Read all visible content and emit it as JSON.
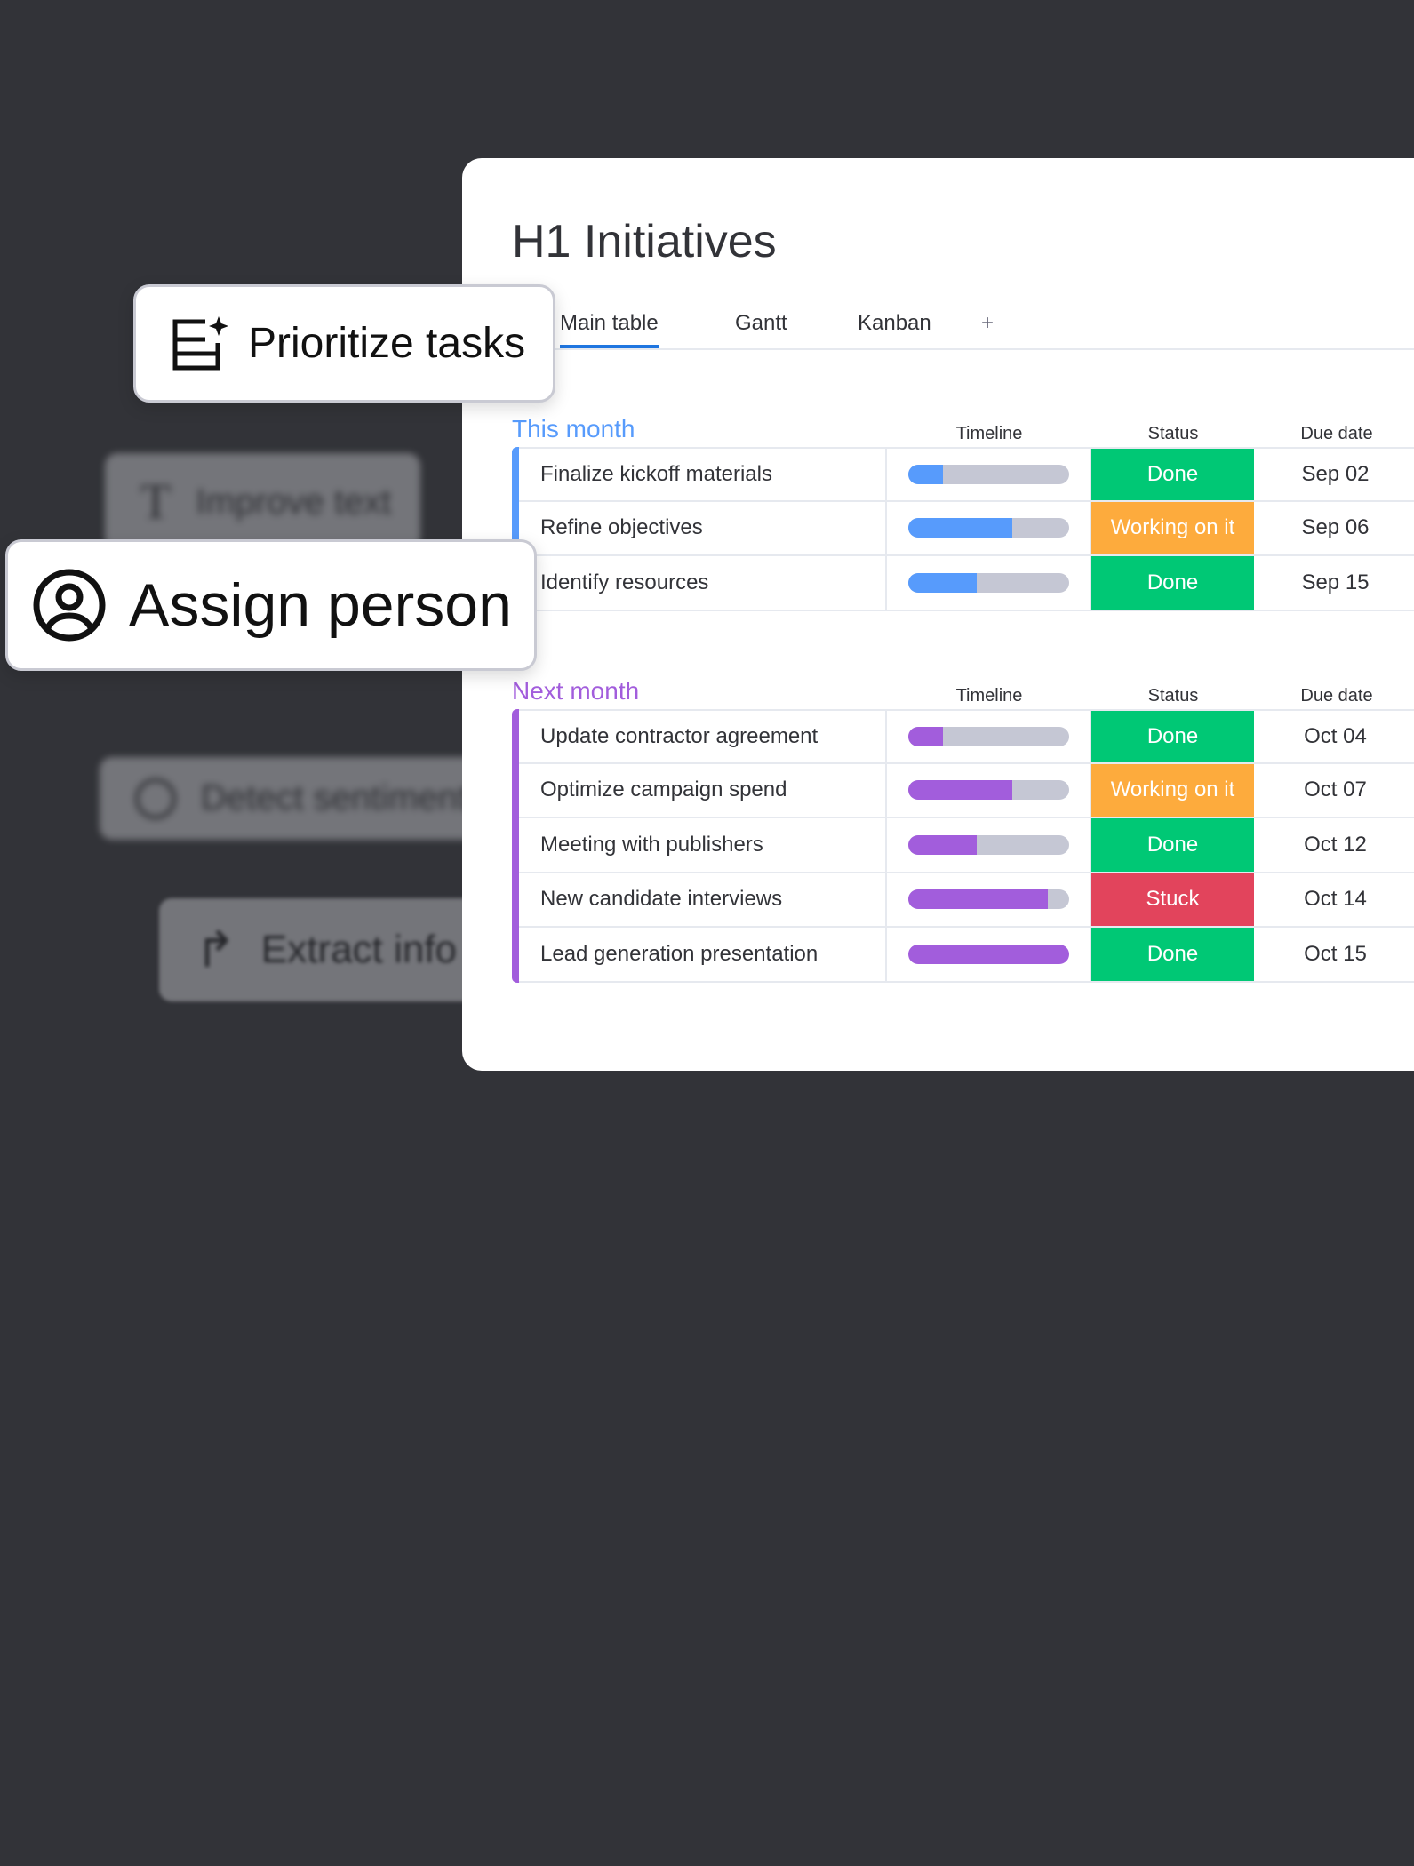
{
  "background_actions": [
    {
      "label": "Improve text",
      "icon": "text-icon"
    },
    {
      "label": "Detect sentiment",
      "icon": "sentiment-icon"
    },
    {
      "label": "Extract info",
      "icon": "arrow-redo-icon"
    }
  ],
  "cards": {
    "prioritize": {
      "label": "Prioritize tasks",
      "icon": "table-sparkle-icon"
    },
    "assign": {
      "label": "Assign person",
      "icon": "person-circle-icon"
    }
  },
  "board": {
    "title": "H1 Initiatives",
    "tabs": [
      "Main table",
      "Gantt",
      "Kanban",
      "+"
    ],
    "columns": {
      "timeline": "Timeline",
      "status": "Status",
      "due": "Due date"
    },
    "groups": [
      {
        "title": "This month",
        "color": "#579bfc",
        "rows": [
          {
            "name": "Finalize kickoff materials",
            "progress": 0.22,
            "status": "Done",
            "due": "Sep 02"
          },
          {
            "name": "Refine objectives",
            "progress": 0.65,
            "status": "Working on it",
            "due": "Sep 06"
          },
          {
            "name": "Identify resources",
            "progress": 0.43,
            "status": "Done",
            "due": "Sep 15"
          }
        ]
      },
      {
        "title": "Next month",
        "color": "#a25ddc",
        "rows": [
          {
            "name": "Update contractor agreement",
            "progress": 0.22,
            "status": "Done",
            "due": "Oct 04"
          },
          {
            "name": "Optimize campaign spend",
            "progress": 0.65,
            "status": "Working on it",
            "due": "Oct 07"
          },
          {
            "name": "Meeting with publishers",
            "progress": 0.43,
            "status": "Done",
            "due": "Oct 12"
          },
          {
            "name": "New candidate interviews",
            "progress": 0.87,
            "status": "Stuck",
            "due": "Oct 14"
          },
          {
            "name": "Lead generation presentation",
            "progress": 1.0,
            "status": "Done",
            "due": "Oct 15"
          }
        ]
      }
    ]
  },
  "status_colors": {
    "Done": "#00c875",
    "Working on it": "#fdab3d",
    "Stuck": "#e2445c"
  }
}
